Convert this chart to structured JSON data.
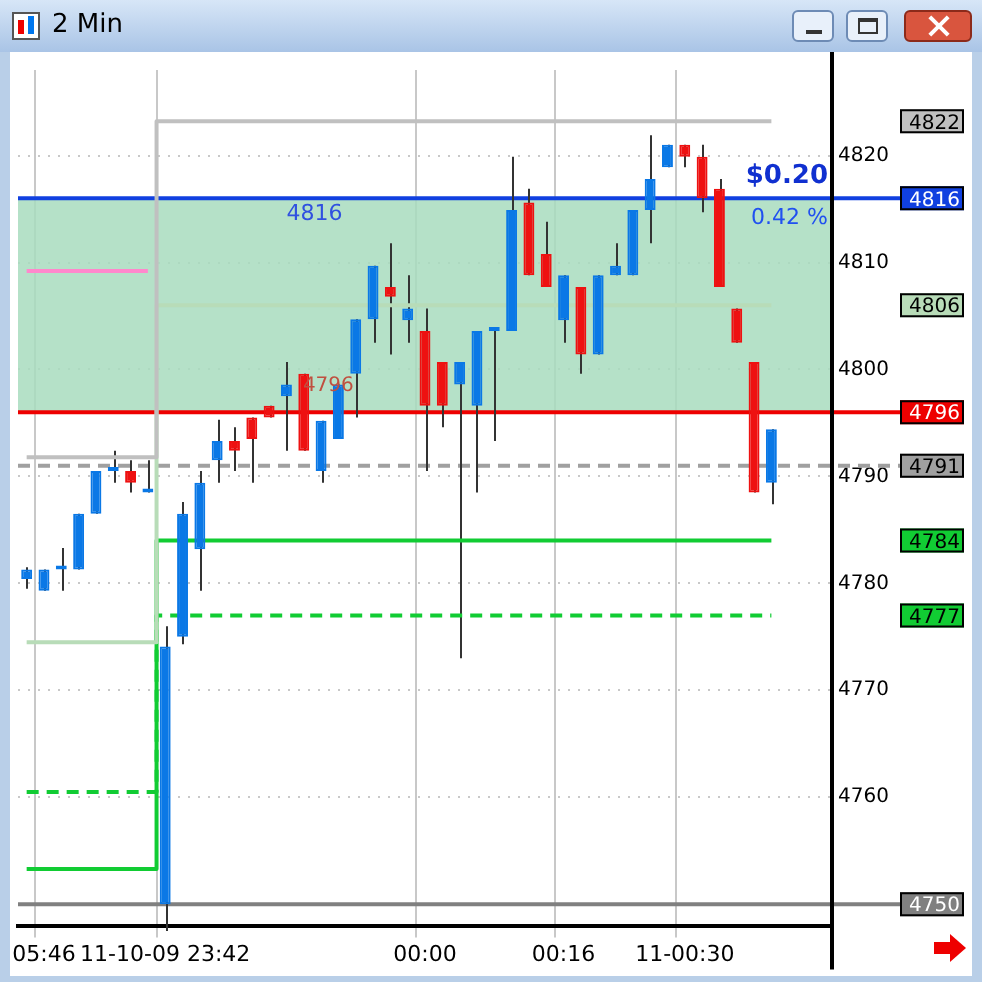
{
  "chart_data": {
    "type": "candlestick",
    "title": "2 Min",
    "categories": [
      null,
      "05:46",
      null,
      null,
      null,
      null,
      null,
      null,
      "11-10-09 23:42",
      null,
      null,
      null,
      null,
      null,
      null,
      null,
      null,
      null,
      null,
      null,
      null,
      null,
      null,
      "00:00",
      null,
      null,
      null,
      null,
      null,
      null,
      null,
      "00:16",
      null,
      null,
      null,
      null,
      null,
      null,
      "11-00:30",
      null,
      null,
      null,
      null,
      null
    ],
    "ohlc": [
      [
        4780.4,
        4781.5,
        4779.5,
        4781.3
      ],
      [
        4779.3,
        4781.3,
        4779.3,
        4781.3
      ],
      [
        4781.3,
        4783.3,
        4779.3,
        4781.3
      ],
      [
        4781.3,
        4786.5,
        4781.3,
        4786.5
      ],
      [
        4786.5,
        4790.5,
        4786.5,
        4790.5
      ],
      [
        4790.5,
        4792.4,
        4789.4,
        4790.5
      ],
      [
        4790.5,
        4791.5,
        4788.5,
        4789.4
      ],
      [
        4788.5,
        4791.5,
        4788.5,
        4788.5
      ],
      [
        4750,
        4776,
        4747.5,
        4774.1
      ],
      [
        4775,
        4787.6,
        4774.3,
        4786.5
      ],
      [
        4783.2,
        4790.5,
        4779.3,
        4789.4
      ],
      [
        4791.5,
        4795.3,
        4789.4,
        4793.3
      ],
      [
        4793.3,
        4794.6,
        4790.5,
        4792.4
      ],
      [
        4795.5,
        4795.5,
        4789.4,
        4793.5
      ],
      [
        4796.6,
        4796.6,
        4795.5,
        4795.5
      ],
      [
        4797.5,
        4800.7,
        4792.4,
        4798.6
      ],
      [
        4799.6,
        4799.6,
        4792.4,
        4792.4
      ],
      [
        4790.5,
        4795.2,
        4789.4,
        4795.2
      ],
      [
        4793.5,
        4798.6,
        4793.5,
        4798.6
      ],
      [
        4799.6,
        4804.7,
        4795.5,
        4804.7
      ],
      [
        4804.7,
        4809.7,
        4802.5,
        4809.7
      ],
      [
        4807.7,
        4811.8,
        4801.4,
        4806.8
      ],
      [
        4804.6,
        4808.8,
        4802.5,
        4805.7
      ],
      [
        4803.6,
        4805.7,
        4790.5,
        4796.6
      ],
      [
        4800.7,
        4800.7,
        4794.6,
        4796.6
      ],
      [
        4798.6,
        4800.7,
        4773,
        4800.7
      ],
      [
        4796.6,
        4803.6,
        4788.5,
        4803.6
      ],
      [
        4803.6,
        4803.6,
        4793.3,
        4803.6
      ],
      [
        4803.6,
        4819.9,
        4803.6,
        4814.9
      ],
      [
        4815.6,
        4816.9,
        4808.8,
        4808.8
      ],
      [
        4810.8,
        4813.8,
        4807.7,
        4807.7
      ],
      [
        4804.6,
        4808.8,
        4802.5,
        4808.8
      ],
      [
        4807.7,
        4807.7,
        4799.6,
        4801.4
      ],
      [
        4801.4,
        4808.8,
        4801.4,
        4808.8
      ],
      [
        4808.8,
        4811.8,
        4808.8,
        4809.7
      ],
      [
        4808.8,
        4814.9,
        4808.8,
        4814.9
      ],
      [
        4814.9,
        4821.9,
        4811.8,
        4817.8
      ],
      [
        4818.9,
        4821,
        4818.9,
        4821
      ],
      [
        4821,
        4821,
        4818.9,
        4819.9
      ],
      [
        4819.9,
        4821,
        4814.7,
        4816
      ],
      [
        4816.9,
        4817.8,
        4807.7,
        4807.7
      ],
      [
        4805.7,
        4805.7,
        4802.5,
        4802.5
      ],
      [
        4800.7,
        4800.7,
        4788.5,
        4788.5
      ],
      [
        4789.4,
        4794.4,
        4787.4,
        4794.4
      ]
    ],
    "colors": [
      "#0a78e6",
      "#0a78e6",
      "#0a78e6",
      "#0a78e6",
      "#0a78e6",
      "#0a78e6",
      "#ee1111",
      "#0a78e6",
      "#0a78e6",
      "#0a78e6",
      "#0a78e6",
      "#0a78e6",
      "#ee1111",
      "#ee1111",
      "#ee1111",
      "#0a78e6",
      "#ee1111",
      "#0a78e6",
      "#0a78e6",
      "#0a78e6",
      "#0a78e6",
      "#ee1111",
      "#0a78e6",
      "#ee1111",
      "#ee1111",
      "#0a78e6",
      "#0a78e6",
      "#0a78e6",
      "#0a78e6",
      "#ee1111",
      "#ee1111",
      "#0a78e6",
      "#ee1111",
      "#0a78e6",
      "#0a78e6",
      "#0a78e6",
      "#0a78e6",
      "#0a78e6",
      "#ee1111",
      "#ee1111",
      "#ee1111",
      "#ee1111",
      "#ee1111",
      "#0a78e6"
    ],
    "series": [
      {
        "type": "step",
        "name": "4822",
        "color": "#c0c0c0",
        "values": [
          4791.8,
          4791.8,
          4791.8,
          4791.8,
          4791.8,
          4791.8,
          4791.8,
          4791.8,
          4823.2,
          4823.2,
          4823.2,
          4823.2,
          4823.2,
          4823.2,
          4823.2,
          4823.2,
          4823.2,
          4823.2,
          4823.2,
          4823.2,
          4823.2,
          4823.2,
          4823.2,
          4823.2,
          4823.2,
          4823.2,
          4823.2,
          4823.2,
          4823.2,
          4823.2,
          4823.2,
          4823.2,
          4823.2,
          4823.2,
          4823.2,
          4823.2,
          4823.2,
          4823.2,
          4823.2,
          4823.2,
          4823.2,
          4823.2,
          4823.2,
          4823.2
        ]
      },
      {
        "type": "step",
        "name": "4806",
        "color": "#b8dcb8",
        "values": [
          4774.5,
          4774.5,
          4774.5,
          4774.5,
          4774.5,
          4774.5,
          4774.5,
          4774.5,
          4806,
          4806,
          4806,
          4806,
          4806,
          4806,
          4806,
          4806,
          4806,
          4806,
          4806,
          4806,
          4806,
          4806,
          4806,
          4806,
          4806,
          4806,
          4806,
          4806,
          4806,
          4806,
          4806,
          4806,
          4806,
          4806,
          4806,
          4806,
          4806,
          4806,
          4806,
          4806,
          4806,
          4806,
          4806,
          4806
        ]
      },
      {
        "type": "step",
        "name": "4784",
        "color": "#11cc33",
        "values": [
          4753.3,
          4753.3,
          4753.3,
          4753.3,
          4753.3,
          4753.3,
          4753.3,
          4753.3,
          4784,
          4784,
          4784,
          4784,
          4784,
          4784,
          4784,
          4784,
          4784,
          4784,
          4784,
          4784,
          4784,
          4784,
          4784,
          4784,
          4784,
          4784,
          4784,
          4784,
          4784,
          4784,
          4784,
          4784,
          4784,
          4784,
          4784,
          4784,
          4784,
          4784,
          4784,
          4784,
          4784,
          4784,
          4784,
          4784
        ]
      },
      {
        "type": "step",
        "name": "4777",
        "color": "#11cc33",
        "line_style": "dashed",
        "values": [
          4760.5,
          4760.5,
          4760.5,
          4760.5,
          4760.5,
          4760.5,
          4760.5,
          4760.5,
          4777,
          4777,
          4777,
          4777,
          4777,
          4777,
          4777,
          4777,
          4777,
          4777,
          4777,
          4777,
          4777,
          4777,
          4777,
          4777,
          4777,
          4777,
          4777,
          4777,
          4777,
          4777,
          4777,
          4777,
          4777,
          4777,
          4777,
          4777,
          4777,
          4777,
          4777,
          4777,
          4777,
          4777,
          4777,
          4777
        ]
      },
      {
        "type": "step",
        "color": "#ff88cc",
        "values": [
          4809.2,
          4809.2,
          4809.2,
          4809.2,
          4809.2,
          4809.2,
          4809.2,
          4809.2,
          null,
          null,
          null,
          null,
          null,
          null,
          null,
          null,
          null,
          null,
          null,
          null,
          null,
          null,
          null,
          null,
          null,
          null,
          null,
          null,
          null,
          null,
          null,
          null,
          null,
          null,
          null,
          null,
          null,
          null,
          null,
          null,
          null,
          null,
          null,
          null
        ]
      }
    ],
    "ylim": [
      4748,
      4828
    ],
    "yticks": [
      4760,
      4770,
      4780,
      4790,
      4800,
      4810,
      4820
    ],
    "ref_lines": [
      {
        "axis": "y",
        "value": 4816,
        "label": "4816",
        "color": "#1040e0"
      },
      {
        "axis": "y",
        "value": 4796,
        "label": "4796",
        "color": "#ee0000"
      },
      {
        "axis": "y",
        "value": 4791,
        "label": "4791",
        "color": "#a0a0a0",
        "line_style": "dashed"
      },
      {
        "axis": "y",
        "value": 4750,
        "label": "4750",
        "color": "#808080"
      }
    ],
    "bands": [
      {
        "axis": "y",
        "from": 4796,
        "to": 4816,
        "color": "#a8dcbe"
      }
    ],
    "annotations": [
      {
        "text": "4816",
        "y": 4816
      },
      {
        "text": "4796",
        "y": 4796
      },
      {
        "text": "$0.20",
        "y": 4816
      },
      {
        "text": "0.42 %",
        "y": 4816
      }
    ],
    "grid": true,
    "legend": false
  }
}
